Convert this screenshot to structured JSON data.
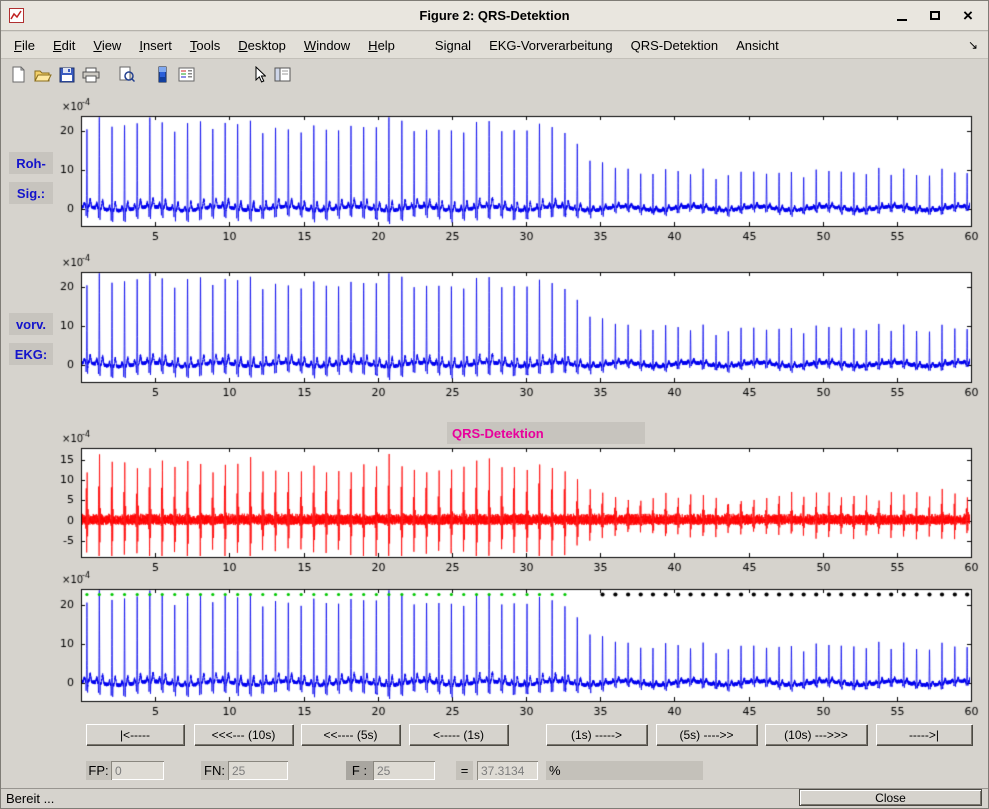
{
  "window": {
    "title": "Figure 2: QRS-Detektion",
    "status": "Bereit ...",
    "close_button": "Close"
  },
  "menu": {
    "items": [
      {
        "label": "File"
      },
      {
        "label": "Edit"
      },
      {
        "label": "View"
      },
      {
        "label": "Insert"
      },
      {
        "label": "Tools"
      },
      {
        "label": "Desktop"
      },
      {
        "label": "Window"
      },
      {
        "label": "Help"
      },
      {
        "label": "Signal"
      },
      {
        "label": "EKG-Vorverarbeitung"
      },
      {
        "label": "QRS-Detektion"
      },
      {
        "label": "Ansicht"
      }
    ],
    "overflow_arrow": "↘"
  },
  "toolbar": {
    "icons": [
      "new-figure",
      "open-file",
      "save-figure",
      "print-figure",
      "print-preview",
      "insert-colorbar",
      "insert-legend",
      "edit-plot-pointer",
      "property-editor"
    ]
  },
  "plot_labels": {
    "raw": [
      "Roh-",
      "Sig.:"
    ],
    "preprocessed": [
      "vorv.",
      "EKG:"
    ],
    "detection_title": "QRS-Detektion"
  },
  "nav": {
    "buttons": [
      {
        "label": "|<-----"
      },
      {
        "label": "<<<--- (10s)"
      },
      {
        "label": "<<---- (5s)"
      },
      {
        "label": "<----- (1s)"
      },
      {
        "label": "(1s) ----->"
      },
      {
        "label": "(5s) ---->>"
      },
      {
        "label": "(10s) --->>>"
      },
      {
        "label": "----->|"
      }
    ]
  },
  "fields": {
    "fp": {
      "label": "FP:",
      "value": "0"
    },
    "fn": {
      "label": "FN:",
      "value": "25"
    },
    "f": {
      "label": "F :",
      "value": "25"
    },
    "equals": "=",
    "result": {
      "value": "37.3134"
    },
    "percent": "%"
  },
  "signal_model": {
    "duration_s": 60,
    "beat_interval_s": 0.85,
    "first_beat_s": 0.4,
    "r_amplitude": 22,
    "filtered_amplitude": 15,
    "amplitude_drop": {
      "start_s": 31,
      "end_s": 36,
      "low_factor": 0.42
    },
    "markers": {
      "y_value": 22.6,
      "detected_until_s": 33.2,
      "missed_from_s": 35.0
    }
  },
  "chart_data": [
    {
      "type": "line",
      "name": "raw-ecg",
      "color": "#0000ee",
      "xlim": [
        0,
        60
      ],
      "ylim": [
        -4.5,
        24
      ],
      "xticks": [
        5,
        10,
        15,
        20,
        25,
        30,
        35,
        40,
        45,
        50,
        55,
        60
      ],
      "yticks": [
        0,
        10,
        20
      ],
      "exponent": {
        "base": "×10",
        "power": "-4"
      },
      "description": "Roh-Signal: raw ECG, QRS spikes every ~0.85 s, peak ~22e-4 until ~31 s then amplitude drops to ~9e-4 up to 60 s"
    },
    {
      "type": "line",
      "name": "preprocessed-ecg",
      "color": "#0000ee",
      "xlim": [
        0,
        60
      ],
      "ylim": [
        -4.5,
        24
      ],
      "xticks": [
        5,
        10,
        15,
        20,
        25,
        30,
        35,
        40,
        45,
        50,
        55,
        60
      ],
      "yticks": [
        0,
        10,
        20
      ],
      "exponent": {
        "base": "×10",
        "power": "-4"
      },
      "description": "vorverarbeitetes EKG: preprocessed ECG, visually identical to the raw signal"
    },
    {
      "type": "line",
      "name": "qrs-detection-filtered",
      "title": "QRS-Detektion",
      "color": "#ff0000",
      "xlim": [
        0,
        60
      ],
      "ylim": [
        -9,
        18
      ],
      "xticks": [
        5,
        10,
        15,
        20,
        25,
        30,
        35,
        40,
        45,
        50,
        55,
        60
      ],
      "yticks": [
        -5,
        0,
        5,
        10,
        15
      ],
      "exponent": {
        "base": "×10",
        "power": "-4"
      },
      "description": "Band-pass filtered detection signal: oscillatory bursts at each QRS, ±15e-4 early, ~±5e-4 after amplitude drop"
    },
    {
      "type": "line",
      "name": "ecg-with-beat-markers",
      "color": "#0000ee",
      "xlim": [
        0,
        60
      ],
      "ylim": [
        -4.5,
        24
      ],
      "xticks": [
        5,
        10,
        15,
        20,
        25,
        30,
        35,
        40,
        45,
        50,
        55,
        60
      ],
      "yticks": [
        0,
        10,
        20
      ],
      "exponent": {
        "base": "×10",
        "power": "-4"
      },
      "markers": {
        "detected": {
          "color": "#00c800",
          "symbol": "dot",
          "range_s": [
            0,
            33.2
          ]
        },
        "missed": {
          "color": "#000000",
          "symbol": "dot",
          "range_s": [
            35,
            60
          ]
        }
      },
      "description": "ECG with detection markers: green dots = detected QRS (t < ~33 s), black dots = missed beats (t > ~35 s), FN = 25"
    }
  ]
}
